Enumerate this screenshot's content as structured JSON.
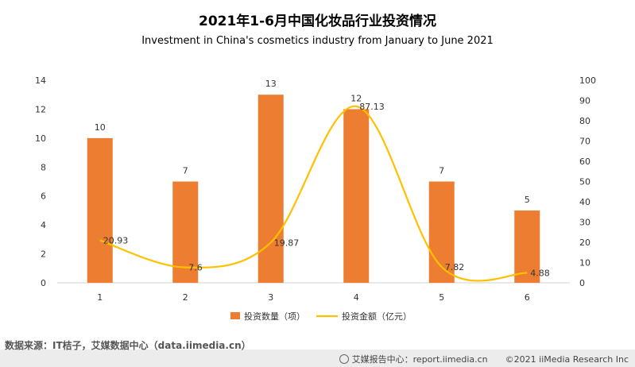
{
  "chart_data": {
    "type": "bar+line",
    "title": "2021年1-6月中国化妆品行业投资情况",
    "subtitle": "Investment in China's cosmetics industry from January to June 2021",
    "categories": [
      "1",
      "2",
      "3",
      "4",
      "5",
      "6"
    ],
    "series": [
      {
        "name": "投资数量（项）",
        "type": "bar",
        "axis": "left",
        "color": "#ED7D31",
        "values": [
          10,
          7,
          13,
          12,
          7,
          5
        ]
      },
      {
        "name": "投资金额（亿元）",
        "type": "line",
        "axis": "right",
        "color": "#FFC000",
        "values": [
          20.93,
          7.6,
          19.87,
          87.13,
          7.82,
          4.88
        ]
      }
    ],
    "left_axis": {
      "min": 0,
      "max": 14,
      "step": 2,
      "ticks": [
        "0",
        "2",
        "4",
        "6",
        "8",
        "10",
        "12",
        "14"
      ]
    },
    "right_axis": {
      "min": 0,
      "max": 100,
      "step": 10,
      "ticks": [
        "0",
        "10",
        "20",
        "30",
        "40",
        "50",
        "60",
        "70",
        "80",
        "90",
        "100"
      ]
    },
    "legend_position": "bottom",
    "grid": false
  },
  "footer": {
    "source": "数据来源：IT桔子，艾媒数据中心（data.iimedia.cn）",
    "report_center": "艾媒报告中心：report.iimedia.cn",
    "copyright": "©2021  iiMedia Research  Inc"
  }
}
